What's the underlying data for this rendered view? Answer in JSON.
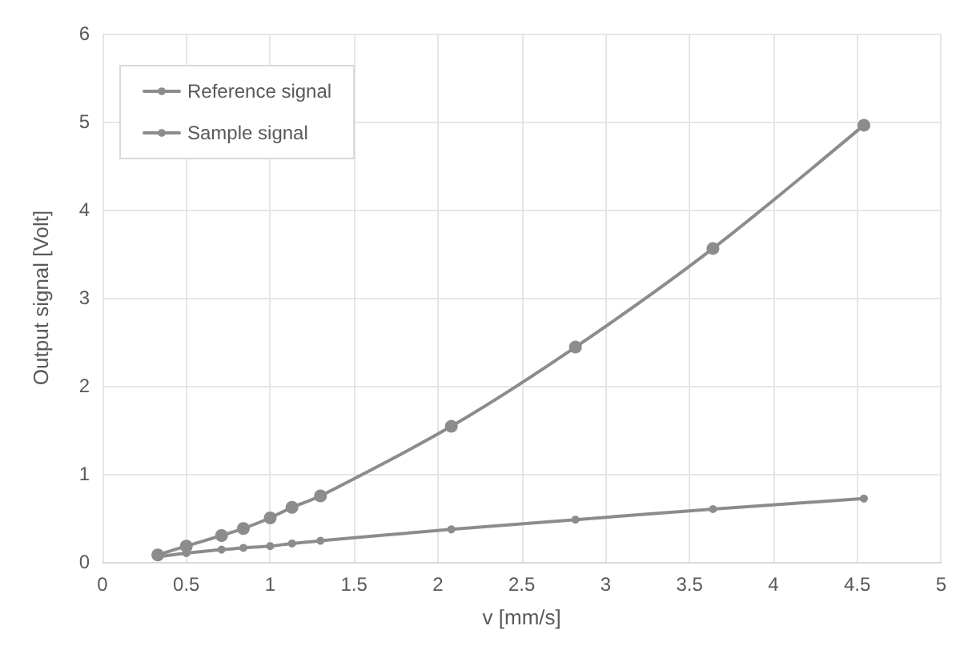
{
  "chart_data": {
    "type": "line",
    "xlabel": "v [mm/s]",
    "ylabel": "Output signal [Volt]",
    "x": [
      0.33,
      0.5,
      0.71,
      0.84,
      1.0,
      1.13,
      1.3,
      2.08,
      2.82,
      3.64,
      4.54
    ],
    "series": [
      {
        "name": "Reference signal",
        "color": "#8c8c8c",
        "values": [
          0.08,
          0.18,
          0.3,
          0.38,
          0.5,
          0.62,
          0.75,
          1.54,
          2.44,
          3.56,
          4.96
        ]
      },
      {
        "name": "Sample signal",
        "color": "#8c8c8c",
        "values": [
          0.06,
          0.1,
          0.14,
          0.16,
          0.18,
          0.21,
          0.24,
          0.37,
          0.48,
          0.6,
          0.72
        ]
      }
    ],
    "xlim": [
      0,
      5
    ],
    "xticks": [
      0,
      0.5,
      1,
      1.5,
      2,
      2.5,
      3,
      3.5,
      4,
      4.5,
      5
    ],
    "ylim": [
      0,
      6
    ],
    "yticks": [
      0,
      1,
      2,
      3,
      4,
      5,
      6
    ],
    "grid": true,
    "legend": "top left",
    "marker": "circle",
    "line_style": "solid"
  }
}
